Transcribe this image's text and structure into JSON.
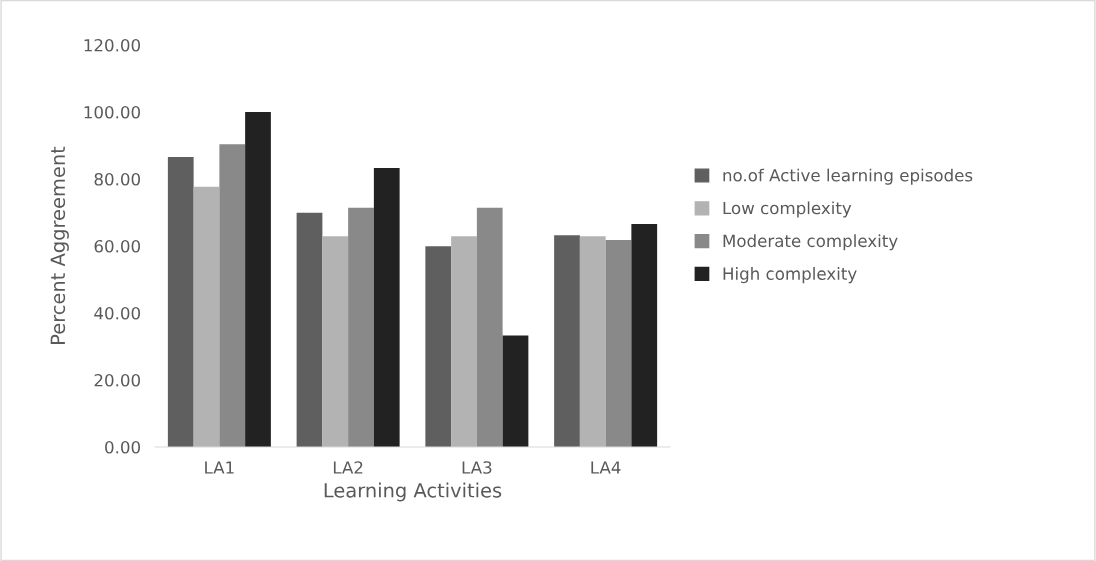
{
  "chart_data": {
    "type": "bar",
    "xlabel": "Learning Activities",
    "ylabel": "Percent Aggreement",
    "categories": [
      "LA1",
      "LA2",
      "LA3",
      "LA4"
    ],
    "series": [
      {
        "name": "no.of Active learning episodes",
        "color": "#5f5f5f",
        "values": [
          86.6,
          69.9,
          59.9,
          63.2
        ]
      },
      {
        "name": "Low complexity",
        "color": "#b3b3b3",
        "values": [
          77.7,
          62.9,
          62.9,
          62.9
        ]
      },
      {
        "name": "Moderate complexity",
        "color": "#898989",
        "values": [
          90.4,
          71.4,
          71.4,
          61.8
        ]
      },
      {
        "name": "High complexity",
        "color": "#222222",
        "values": [
          100,
          83.3,
          33.3,
          66.6
        ]
      }
    ],
    "ylim": [
      0,
      120
    ],
    "yticks": [
      {
        "value": 0,
        "label": "0.00"
      },
      {
        "value": 20,
        "label": "20.00"
      },
      {
        "value": 40,
        "label": "40.00"
      },
      {
        "value": 60,
        "label": "60.00"
      },
      {
        "value": 80,
        "label": "80.00"
      },
      {
        "value": 100,
        "label": "100.00"
      },
      {
        "value": 120,
        "label": "120.00"
      }
    ],
    "grid": false,
    "legend": "right"
  }
}
